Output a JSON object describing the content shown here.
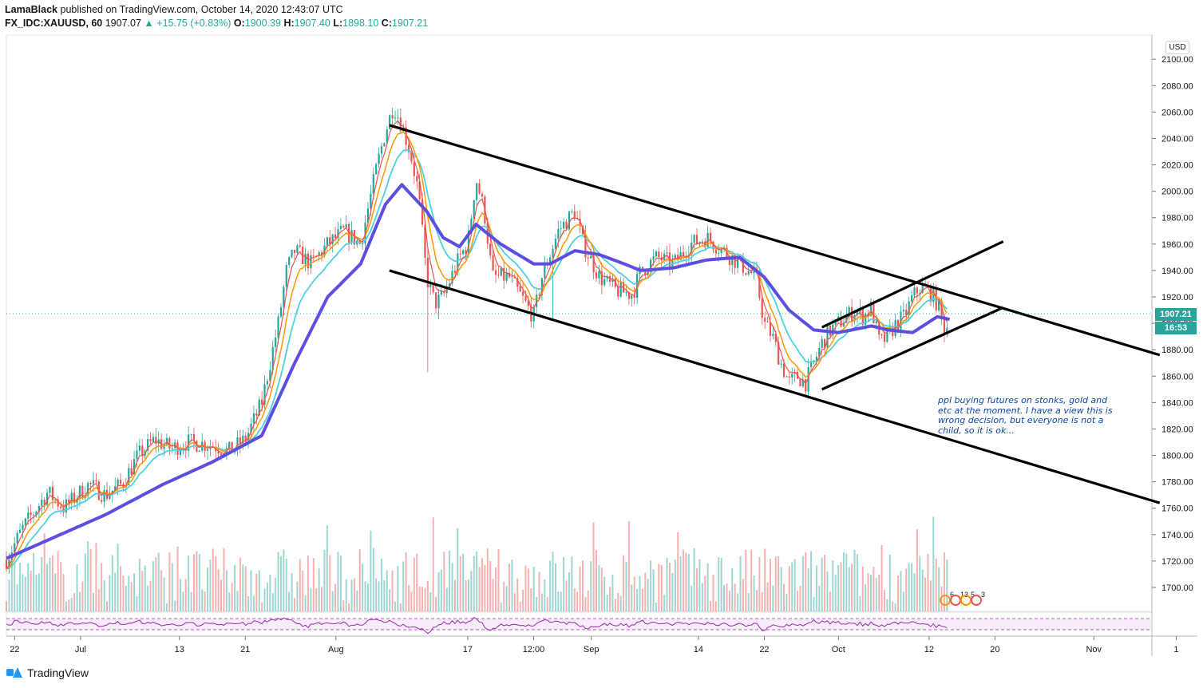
{
  "header": {
    "author": "LamaBlack",
    "published_text": " published on TradingView.com, October 14, 2020 12:43:07 UTC",
    "symbol": "FX_IDC:XAUUSD, 60",
    "last": "1907.07",
    "change_icon": "up-triangle-icon",
    "change": "+15.75 (+0.83%)",
    "o_label": "O:",
    "o": "1900.39",
    "h_label": "H:",
    "h": "1907.40",
    "l_label": "L:",
    "l": "1898.10",
    "c_label": "C:",
    "c": "1907.21"
  },
  "currency": "USD",
  "price_tag": "1907.21",
  "countdown": "16:53",
  "note": "ppl buying futures on stonks, gold and etc at the moment. I have a view this is wrong decision, but everyone is not a child, so it is ok...",
  "indicator_badges": [
    "6",
    "13",
    "5",
    "3"
  ],
  "footer": {
    "brand": "TradingView"
  },
  "colors": {
    "up": "#26a69a",
    "down": "#ef5350",
    "ema_fast": "#ef5350",
    "ema_mid": "#ff9800",
    "ema_slow": "#4dd0e1",
    "ema_long": "#5b4fe0",
    "rsi": "#9c27b0",
    "trendline": "#000000"
  },
  "chart_data": {
    "type": "candlestick",
    "title": "",
    "ylim": [
      1680,
      2110
    ],
    "y_ticks": [
      1700,
      1720,
      1740,
      1760,
      1780,
      1800,
      1820,
      1840,
      1860,
      1880,
      1900,
      1920,
      1940,
      1960,
      1980,
      2000,
      2020,
      2040,
      2060,
      2080,
      2100
    ],
    "x_ticks": [
      "22",
      "Jul",
      "13",
      "21",
      "Aug",
      "17",
      "12:00",
      "Sep",
      "14",
      "22",
      "Oct",
      "12",
      "20",
      "Nov",
      "1"
    ],
    "x_tick_days": [
      -8,
      0,
      12,
      20,
      31,
      47,
      55,
      62,
      75,
      83,
      92,
      103,
      111,
      123,
      133
    ],
    "current_price": 1907.21,
    "close_path": [
      {
        "day": -9,
        "close": 1721
      },
      {
        "day": -7,
        "close": 1745
      },
      {
        "day": -4,
        "close": 1772
      },
      {
        "day": -2,
        "close": 1760
      },
      {
        "day": 1,
        "close": 1778
      },
      {
        "day": 3,
        "close": 1770
      },
      {
        "day": 5,
        "close": 1778
      },
      {
        "day": 7,
        "close": 1800
      },
      {
        "day": 9,
        "close": 1812
      },
      {
        "day": 11,
        "close": 1805
      },
      {
        "day": 13,
        "close": 1810
      },
      {
        "day": 16,
        "close": 1808
      },
      {
        "day": 18,
        "close": 1803
      },
      {
        "day": 20,
        "close": 1812
      },
      {
        "day": 22,
        "close": 1840
      },
      {
        "day": 24,
        "close": 1900
      },
      {
        "day": 25,
        "close": 1940
      },
      {
        "day": 26,
        "close": 1955
      },
      {
        "day": 28,
        "close": 1945
      },
      {
        "day": 30,
        "close": 1960
      },
      {
        "day": 32,
        "close": 1970
      },
      {
        "day": 34,
        "close": 1960
      },
      {
        "day": 36,
        "close": 2020
      },
      {
        "day": 37,
        "close": 2045
      },
      {
        "day": 38,
        "close": 2065
      },
      {
        "day": 39,
        "close": 2050
      },
      {
        "day": 40,
        "close": 2030
      },
      {
        "day": 41,
        "close": 2000
      },
      {
        "day": 42,
        "close": 1935
      },
      {
        "day": 43,
        "close": 1915
      },
      {
        "day": 44,
        "close": 1920
      },
      {
        "day": 45,
        "close": 1935
      },
      {
        "day": 46,
        "close": 1950
      },
      {
        "day": 47,
        "close": 1960
      },
      {
        "day": 48,
        "close": 2010
      },
      {
        "day": 49,
        "close": 1985
      },
      {
        "day": 50,
        "close": 1935
      },
      {
        "day": 52,
        "close": 1935
      },
      {
        "day": 54,
        "close": 1915
      },
      {
        "day": 55,
        "close": 1905
      },
      {
        "day": 56,
        "close": 1935
      },
      {
        "day": 58,
        "close": 1970
      },
      {
        "day": 60,
        "close": 1985
      },
      {
        "day": 61,
        "close": 1960
      },
      {
        "day": 63,
        "close": 1935
      },
      {
        "day": 65,
        "close": 1925
      },
      {
        "day": 67,
        "close": 1922
      },
      {
        "day": 68,
        "close": 1940
      },
      {
        "day": 70,
        "close": 1950
      },
      {
        "day": 72,
        "close": 1945
      },
      {
        "day": 74,
        "close": 1960
      },
      {
        "day": 76,
        "close": 1965
      },
      {
        "day": 78,
        "close": 1955
      },
      {
        "day": 80,
        "close": 1945
      },
      {
        "day": 82,
        "close": 1935
      },
      {
        "day": 83,
        "close": 1900
      },
      {
        "day": 84,
        "close": 1890
      },
      {
        "day": 85,
        "close": 1870
      },
      {
        "day": 86,
        "close": 1855
      },
      {
        "day": 87,
        "close": 1860
      },
      {
        "day": 88,
        "close": 1855
      },
      {
        "day": 89,
        "close": 1870
      },
      {
        "day": 90,
        "close": 1885
      },
      {
        "day": 91,
        "close": 1895
      },
      {
        "day": 92,
        "close": 1900
      },
      {
        "day": 93,
        "close": 1905
      },
      {
        "day": 94,
        "close": 1910
      },
      {
        "day": 95,
        "close": 1905
      },
      {
        "day": 96,
        "close": 1912
      },
      {
        "day": 97,
        "close": 1885
      },
      {
        "day": 98,
        "close": 1890
      },
      {
        "day": 99,
        "close": 1900
      },
      {
        "day": 100,
        "close": 1905
      },
      {
        "day": 101,
        "close": 1920
      },
      {
        "day": 102,
        "close": 1928
      },
      {
        "day": 103,
        "close": 1925
      },
      {
        "day": 104,
        "close": 1915
      },
      {
        "day": 105,
        "close": 1893
      },
      {
        "day": 105.5,
        "close": 1907
      }
    ],
    "ema_long_path": [
      {
        "day": -9,
        "close": 1722
      },
      {
        "day": 3,
        "close": 1755
      },
      {
        "day": 10,
        "close": 1778
      },
      {
        "day": 16,
        "close": 1795
      },
      {
        "day": 22,
        "close": 1815
      },
      {
        "day": 26,
        "close": 1870
      },
      {
        "day": 30,
        "close": 1920
      },
      {
        "day": 34,
        "close": 1945
      },
      {
        "day": 37,
        "close": 1990
      },
      {
        "day": 39,
        "close": 2005
      },
      {
        "day": 42,
        "close": 1985
      },
      {
        "day": 44,
        "close": 1965
      },
      {
        "day": 46,
        "close": 1958
      },
      {
        "day": 48,
        "close": 1975
      },
      {
        "day": 51,
        "close": 1960
      },
      {
        "day": 55,
        "close": 1945
      },
      {
        "day": 57,
        "close": 1945
      },
      {
        "day": 60,
        "close": 1955
      },
      {
        "day": 63,
        "close": 1952
      },
      {
        "day": 66,
        "close": 1945
      },
      {
        "day": 68,
        "close": 1940
      },
      {
        "day": 72,
        "close": 1942
      },
      {
        "day": 76,
        "close": 1948
      },
      {
        "day": 80,
        "close": 1950
      },
      {
        "day": 83,
        "close": 1935
      },
      {
        "day": 86,
        "close": 1910
      },
      {
        "day": 89,
        "close": 1895
      },
      {
        "day": 92,
        "close": 1893
      },
      {
        "day": 96,
        "close": 1898
      },
      {
        "day": 98,
        "close": 1895
      },
      {
        "day": 101,
        "close": 1893
      },
      {
        "day": 104,
        "close": 1905
      },
      {
        "day": 105.5,
        "close": 1903
      }
    ],
    "trendlines": [
      {
        "name": "channel-upper",
        "from": {
          "day": 37.5,
          "close": 2050
        },
        "to": {
          "day": 131,
          "close": 1876
        }
      },
      {
        "name": "channel-lower",
        "from": {
          "day": 37.5,
          "close": 1940
        },
        "to": {
          "day": 131,
          "close": 1764
        }
      },
      {
        "name": "rising-upper",
        "from": {
          "day": 90,
          "close": 1897
        },
        "to": {
          "day": 112,
          "close": 1962
        }
      },
      {
        "name": "rising-lower",
        "from": {
          "day": 90,
          "close": 1850
        },
        "to": {
          "day": 112,
          "close": 1912
        }
      }
    ]
  }
}
